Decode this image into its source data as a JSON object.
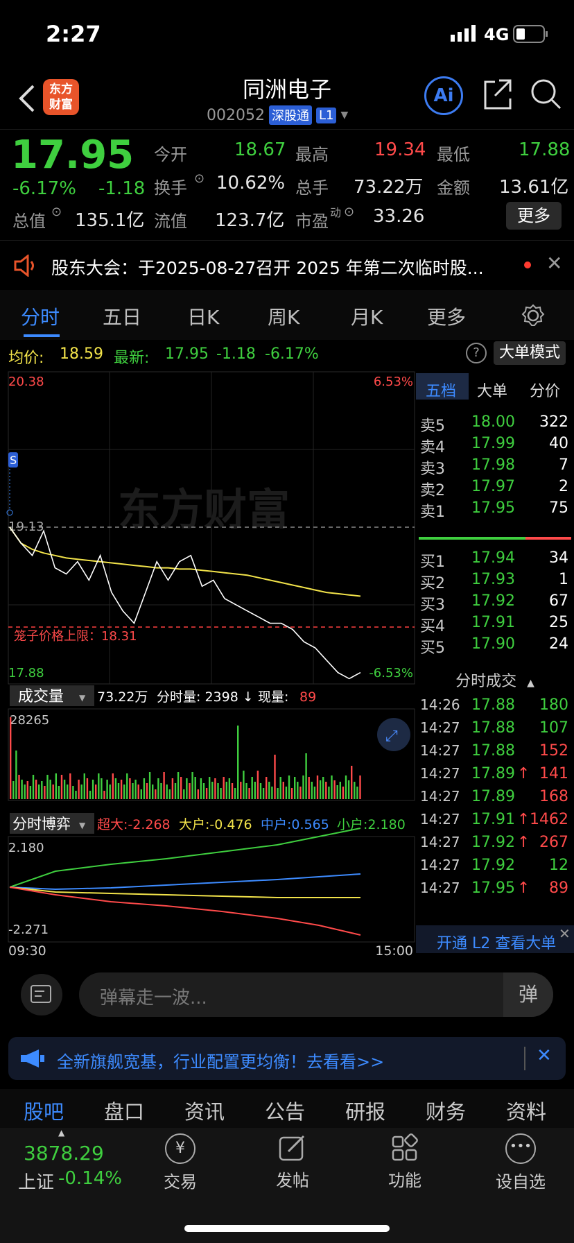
{
  "status": {
    "time": "2:27",
    "network": "4G"
  },
  "header": {
    "title": "同洲电子",
    "code": "002052",
    "market_tag": "深股通",
    "level_tag": "L1",
    "logo_text": "东方\n财富"
  },
  "quote": {
    "price": "17.95",
    "pct": "-6.17%",
    "change": "-1.18",
    "open_label": "今开",
    "open": "18.67",
    "high_label": "最高",
    "high": "19.34",
    "low_label": "最低",
    "low": "17.88",
    "turnover_label": "换手",
    "turnover": "10.62%",
    "vol_label": "总手",
    "vol": "73.22万",
    "amount_label": "金额",
    "amount": "13.61亿",
    "mcap_label": "总值",
    "mcap": "135.1亿",
    "float_label": "流值",
    "float": "123.7亿",
    "pe_label": "市盈",
    "pe_sup": "动",
    "pe": "33.26",
    "more": "更多"
  },
  "notice": {
    "text": "股东大会：于2025-08-27召开 2025 年第二次临时股..."
  },
  "tabs": [
    "分时",
    "五日",
    "日K",
    "周K",
    "月K",
    "更多"
  ],
  "info": {
    "avg_label": "均价:",
    "avg": "18.59",
    "latest_label": "最新:",
    "latest": "17.95",
    "chg": "-1.18",
    "pct": "-6.17%",
    "mode_btn": "大单模式"
  },
  "chart": {
    "max_price": "20.38",
    "max_pct": "6.53%",
    "min_price": "17.88",
    "min_pct": "-6.53%",
    "prev_close": "19.13",
    "cage_label": "笼子价格上限：18.31",
    "watermark": "东方财富",
    "vol_label": "成交量",
    "vol_total": "73.22万",
    "vol_time_label": "分时量: 2398 ↓",
    "now_label": "现量:",
    "now_vol": "89",
    "vol_max": "28265",
    "game_label": "分时博弈",
    "game_super": "超大:-2.268",
    "game_big": "大户:-0.476",
    "game_mid": "中户:0.565",
    "game_small": "小户:2.180",
    "game_max": "2.180",
    "game_min": "-2.271",
    "t_start": "09:30",
    "t_end": "15:00"
  },
  "chart_data": {
    "type": "line",
    "title": "",
    "series": [
      {
        "name": "",
        "values": [
          19.13,
          19.0,
          18.9,
          19.1,
          18.8,
          18.75,
          18.85,
          18.7,
          18.9,
          18.6,
          18.45,
          18.35,
          18.6,
          18.85,
          18.7,
          18.85,
          18.9,
          18.65,
          18.7,
          18.55,
          18.5,
          18.45,
          18.4,
          18.35,
          18.35,
          18.3,
          18.2,
          18.15,
          18.05,
          17.95,
          17.9,
          17.95
        ]
      },
      {
        "name": "均价",
        "values": [
          19.13,
          19.0,
          18.95,
          18.92,
          18.9,
          18.88,
          18.87,
          18.86,
          18.85,
          18.84,
          18.83,
          18.82,
          18.81,
          18.8,
          18.8,
          18.79,
          18.79,
          18.78,
          18.77,
          18.76,
          18.75,
          18.74,
          18.72,
          18.7,
          18.68,
          18.66,
          18.64,
          18.62,
          18.6,
          18.59,
          18.58,
          18.57
        ]
      }
    ],
    "ylim": [
      17.88,
      20.38
    ]
  },
  "orderbook": {
    "tabs": [
      "五档",
      "大单",
      "分价"
    ],
    "asks": [
      [
        "卖5",
        "18.00",
        "322"
      ],
      [
        "卖4",
        "17.99",
        "40"
      ],
      [
        "卖3",
        "17.98",
        "7"
      ],
      [
        "卖2",
        "17.97",
        "2"
      ],
      [
        "卖1",
        "17.95",
        "75"
      ]
    ],
    "bids": [
      [
        "买1",
        "17.94",
        "34"
      ],
      [
        "买2",
        "17.93",
        "1"
      ],
      [
        "买3",
        "17.92",
        "67"
      ],
      [
        "买4",
        "17.91",
        "25"
      ],
      [
        "买5",
        "17.90",
        "24"
      ]
    ],
    "trades_label": "分时成交",
    "trades": [
      [
        "14:26",
        "17.88",
        "",
        "180",
        "g"
      ],
      [
        "14:27",
        "17.88",
        "",
        "107",
        "g"
      ],
      [
        "14:27",
        "17.88",
        "",
        "152",
        "r"
      ],
      [
        "14:27",
        "17.89",
        "↑",
        "141",
        "r"
      ],
      [
        "14:27",
        "17.89",
        "",
        "168",
        "r"
      ],
      [
        "14:27",
        "17.91",
        "↑",
        "1462",
        "r"
      ],
      [
        "14:27",
        "17.92",
        "↑",
        "267",
        "r"
      ],
      [
        "14:27",
        "17.92",
        "",
        "12",
        "g"
      ],
      [
        "14:27",
        "17.95",
        "↑",
        "89",
        "r"
      ]
    ],
    "l2": "开通 L2 查看大单"
  },
  "comment": {
    "placeholder": "弹幕走一波...",
    "btn": "弹"
  },
  "promo": {
    "text": "全新旗舰宽基，行业配置更均衡！去看看>>"
  },
  "subtabs": [
    "股吧",
    "盘口",
    "资讯",
    "公告",
    "研报",
    "财务",
    "资料"
  ],
  "nav": {
    "index_value": "3878.29",
    "index_name": "上证",
    "index_pct": "-0.14%",
    "items": [
      "交易",
      "发帖",
      "功能",
      "设自选"
    ]
  }
}
